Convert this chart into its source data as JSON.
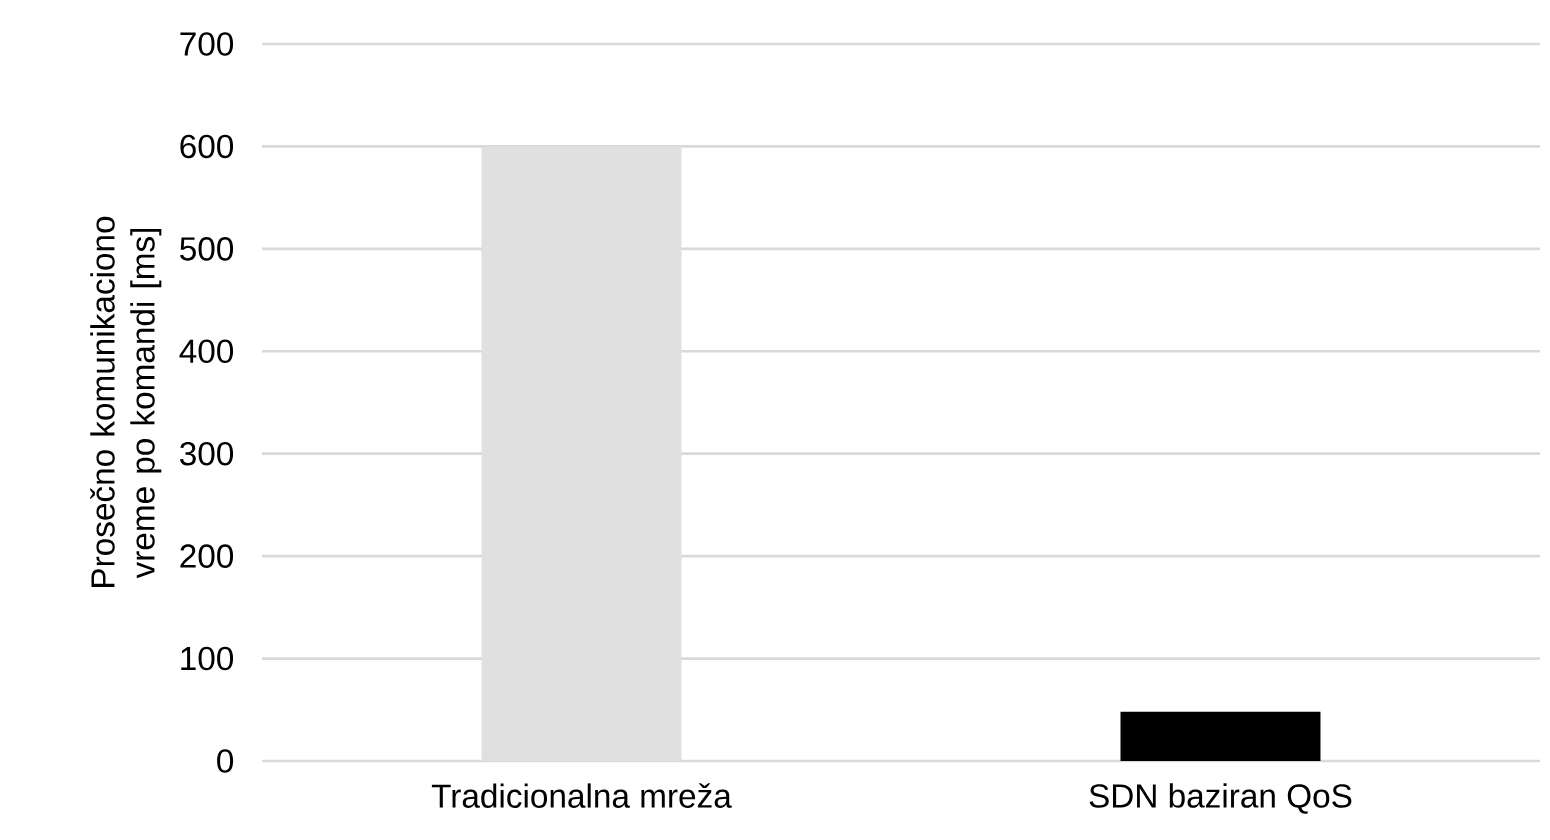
{
  "chart_data": {
    "type": "bar",
    "ylabel": "Prosečno komunikaciono vreme po komandi [ms]",
    "categories": [
      "Tradicionalna mreža",
      "SDN baziran QoS"
    ],
    "values": [
      600,
      48
    ],
    "colors": [
      "#e0e0e0",
      "#000000"
    ],
    "ylim": [
      0,
      700
    ],
    "yticks": [
      0,
      100,
      200,
      300,
      400,
      500,
      600,
      700
    ],
    "grid": "y"
  }
}
